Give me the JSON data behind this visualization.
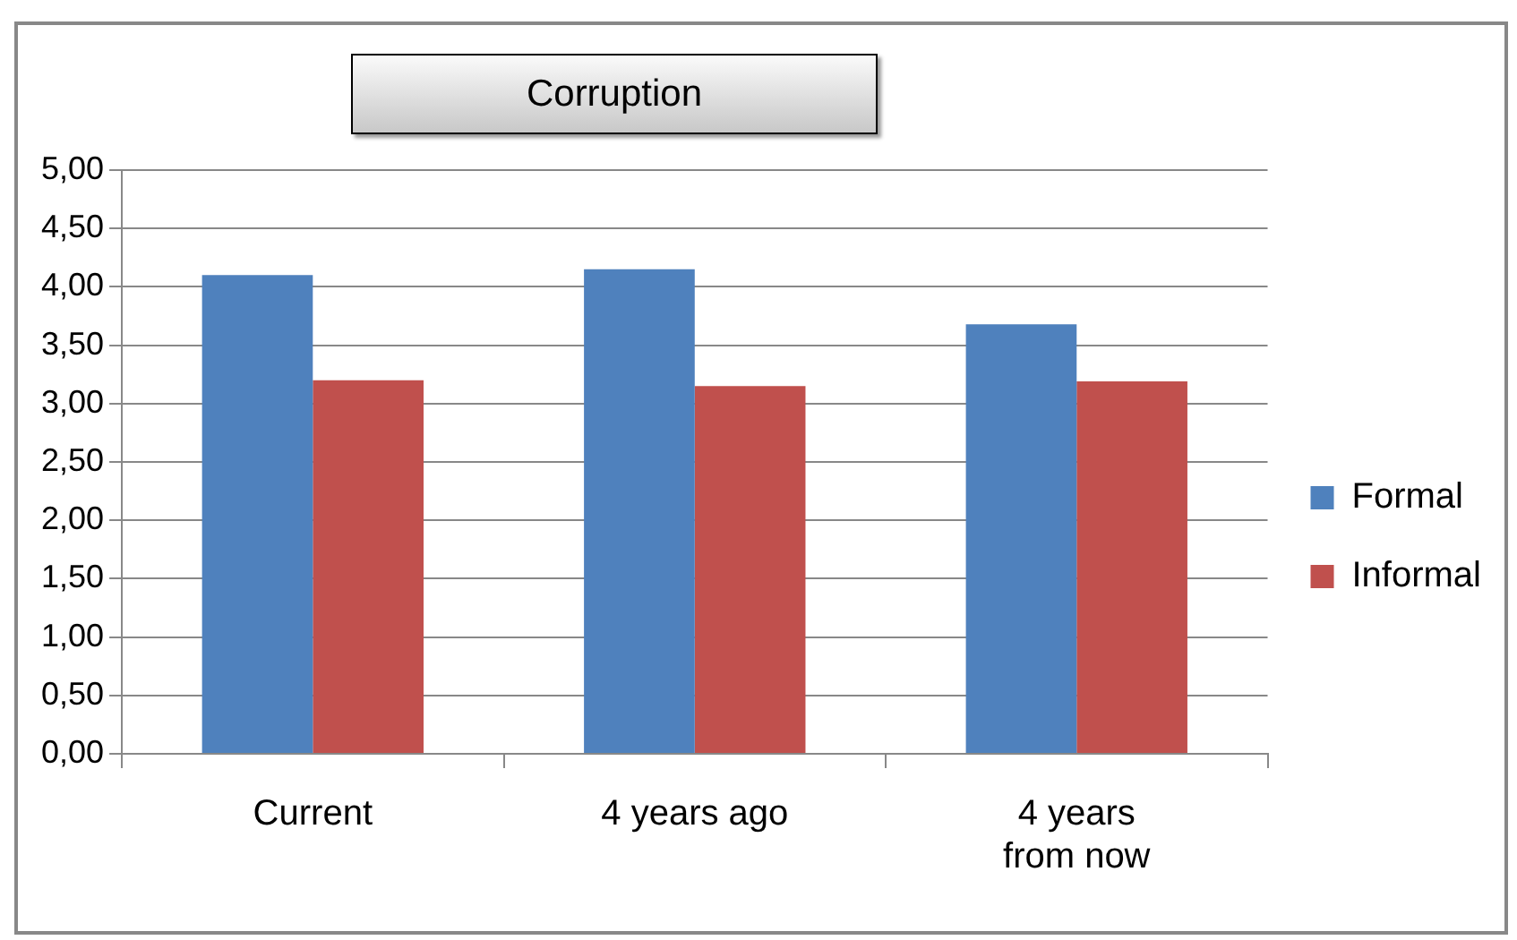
{
  "chart_data": {
    "type": "bar",
    "title": "Corruption",
    "categories": [
      "Current",
      "4 years ago",
      "4 years from now"
    ],
    "series": [
      {
        "name": "Formal",
        "color": "#4f81bd",
        "values": [
          4.1,
          4.15,
          3.68
        ]
      },
      {
        "name": "Informal",
        "color": "#c0504d",
        "values": [
          3.2,
          3.15,
          3.19
        ]
      }
    ],
    "ylim": [
      0,
      5
    ],
    "yticks": [
      {
        "value": 0,
        "label": "0,00"
      },
      {
        "value": 0.5,
        "label": "0,50"
      },
      {
        "value": 1,
        "label": "1,00"
      },
      {
        "value": 1.5,
        "label": "1,50"
      },
      {
        "value": 2,
        "label": "2,00"
      },
      {
        "value": 2.5,
        "label": "2,50"
      },
      {
        "value": 3,
        "label": "3,00"
      },
      {
        "value": 3.5,
        "label": "3,50"
      },
      {
        "value": 4,
        "label": "4,00"
      },
      {
        "value": 4.5,
        "label": "4,50"
      },
      {
        "value": 5,
        "label": "5,00"
      }
    ],
    "grid": "y",
    "legend": "right"
  }
}
